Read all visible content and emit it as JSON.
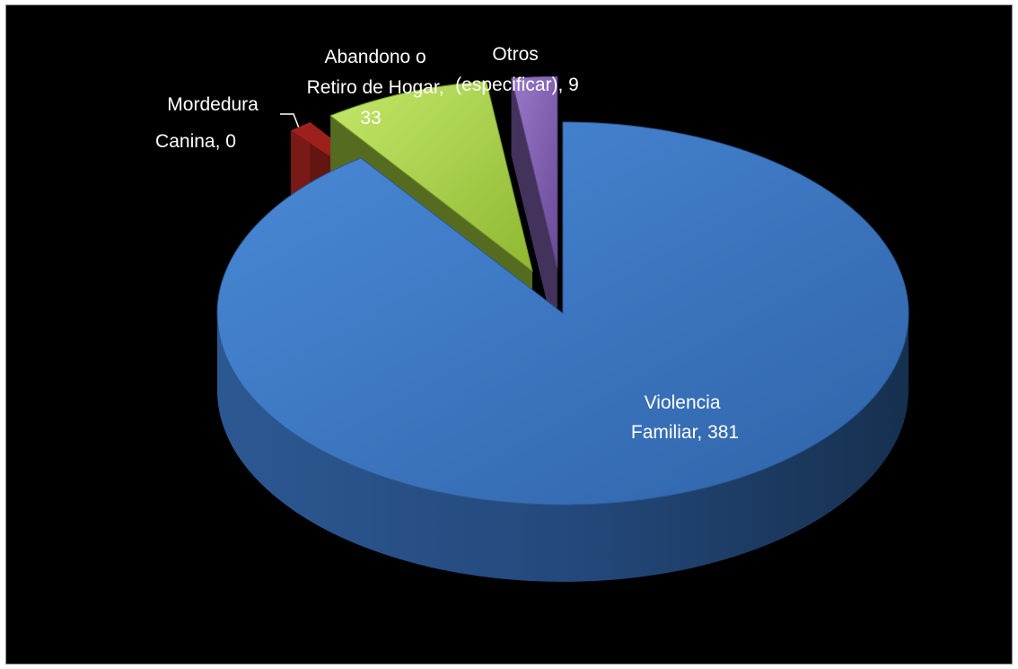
{
  "chart_data": {
    "type": "pie",
    "style": "3d-exploded",
    "title": "",
    "background": "#000000",
    "slices": [
      {
        "label": "Violencia Familiar",
        "value": 381,
        "color": "#3a77c6",
        "label_lines": [
          "Violencia",
          "Familiar, 381"
        ]
      },
      {
        "label": "Mordedura Canina",
        "value": 0,
        "color": "#8e1e1a",
        "label_lines": [
          "Mordedura",
          "Canina, 0"
        ]
      },
      {
        "label": "Abandono o Retiro de Hogar",
        "value": 33,
        "color": "#9bc33a",
        "label_lines": [
          "Abandono o",
          "Retiro de Hogar,",
          "33"
        ]
      },
      {
        "label": "Otros (especificar)",
        "value": 9,
        "color": "#7a5aa6",
        "label_lines": [
          "Otros",
          "(especificar), 9"
        ]
      }
    ]
  }
}
